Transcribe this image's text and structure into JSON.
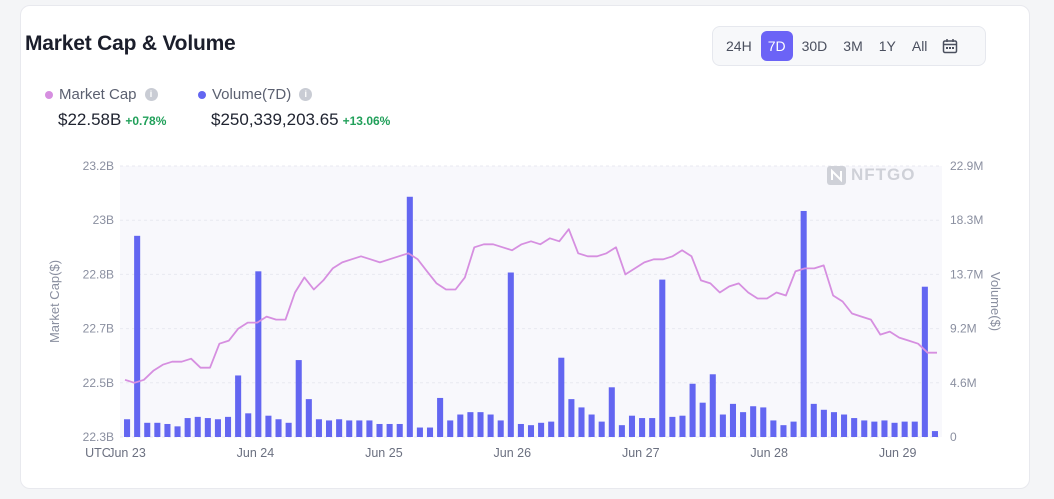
{
  "title": "Market Cap & Volume",
  "time_ranges": [
    {
      "label": "24H",
      "active": false
    },
    {
      "label": "7D",
      "active": true
    },
    {
      "label": "30D",
      "active": false
    },
    {
      "label": "3M",
      "active": false
    },
    {
      "label": "1Y",
      "active": false
    },
    {
      "label": "All",
      "active": false
    }
  ],
  "calendar_icon": "calendar-icon",
  "legend": {
    "market_cap": {
      "label": "Market Cap",
      "value": "$22.58B",
      "change": "+0.78%",
      "color": "#d68fe0"
    },
    "volume": {
      "label": "Volume(7D)",
      "value": "$250,339,203.65",
      "change": "+13.06%",
      "color": "#6366f1"
    }
  },
  "watermark": "NFTGO",
  "chart_data": {
    "type": "bar+line",
    "x_labels": [
      "UTC",
      "Jun 23",
      "Jun 24",
      "Jun 25",
      "Jun 26",
      "Jun 27",
      "Jun 28",
      "Jun 29"
    ],
    "y_left": {
      "label": "Market Cap($)",
      "ticks": [
        "23.2B",
        "23B",
        "22.8B",
        "22.7B",
        "22.5B",
        "22.3B"
      ],
      "range": [
        22.3,
        23.2
      ],
      "unit": "B"
    },
    "y_right": {
      "label": "Volume($)",
      "ticks": [
        "22.9M",
        "18.3M",
        "13.7M",
        "9.2M",
        "4.6M",
        "0"
      ],
      "range": [
        0,
        22.9
      ],
      "unit": "M"
    },
    "series": [
      {
        "name": "Market Cap",
        "type": "line",
        "values": [
          22.49,
          22.48,
          22.49,
          22.52,
          22.54,
          22.55,
          22.55,
          22.56,
          22.53,
          22.53,
          22.61,
          22.62,
          22.66,
          22.68,
          22.68,
          22.7,
          22.69,
          22.69,
          22.78,
          22.83,
          22.79,
          22.82,
          22.86,
          22.88,
          22.89,
          22.9,
          22.89,
          22.88,
          22.89,
          22.9,
          22.91,
          22.89,
          22.85,
          22.81,
          22.79,
          22.79,
          22.83,
          22.93,
          22.94,
          22.94,
          22.93,
          22.92,
          22.94,
          22.95,
          22.94,
          22.96,
          22.95,
          22.99,
          22.91,
          22.9,
          22.9,
          22.91,
          22.93,
          22.84,
          22.86,
          22.88,
          22.89,
          22.89,
          22.9,
          22.92,
          22.9,
          22.82,
          22.81,
          22.78,
          22.8,
          22.81,
          22.78,
          22.76,
          22.76,
          22.78,
          22.77,
          22.85,
          22.86,
          22.86,
          22.87,
          22.77,
          22.75,
          22.71,
          22.7,
          22.69,
          22.64,
          22.65,
          22.63,
          22.62,
          22.61,
          22.58,
          22.58
        ]
      },
      {
        "name": "Volume(7D)",
        "type": "bar",
        "values": [
          1.5,
          17.0,
          1.2,
          1.2,
          1.1,
          0.9,
          1.6,
          1.7,
          1.6,
          1.5,
          1.7,
          5.2,
          2.0,
          14.0,
          1.8,
          1.5,
          1.2,
          6.5,
          3.2,
          1.5,
          1.4,
          1.5,
          1.4,
          1.4,
          1.4,
          1.1,
          1.1,
          1.1,
          20.3,
          0.8,
          0.8,
          3.3,
          1.4,
          1.9,
          2.1,
          2.1,
          1.9,
          1.4,
          13.9,
          1.1,
          1.0,
          1.2,
          1.3,
          6.7,
          3.2,
          2.5,
          1.9,
          1.3,
          4.2,
          1.0,
          1.8,
          1.6,
          1.6,
          13.3,
          1.7,
          1.8,
          4.5,
          2.9,
          5.3,
          1.9,
          2.8,
          2.1,
          2.6,
          2.5,
          1.4,
          1.0,
          1.3,
          19.1,
          2.8,
          2.3,
          2.1,
          1.9,
          1.6,
          1.4,
          1.3,
          1.4,
          1.2,
          1.3,
          1.3,
          12.7,
          0.5
        ]
      }
    ]
  }
}
